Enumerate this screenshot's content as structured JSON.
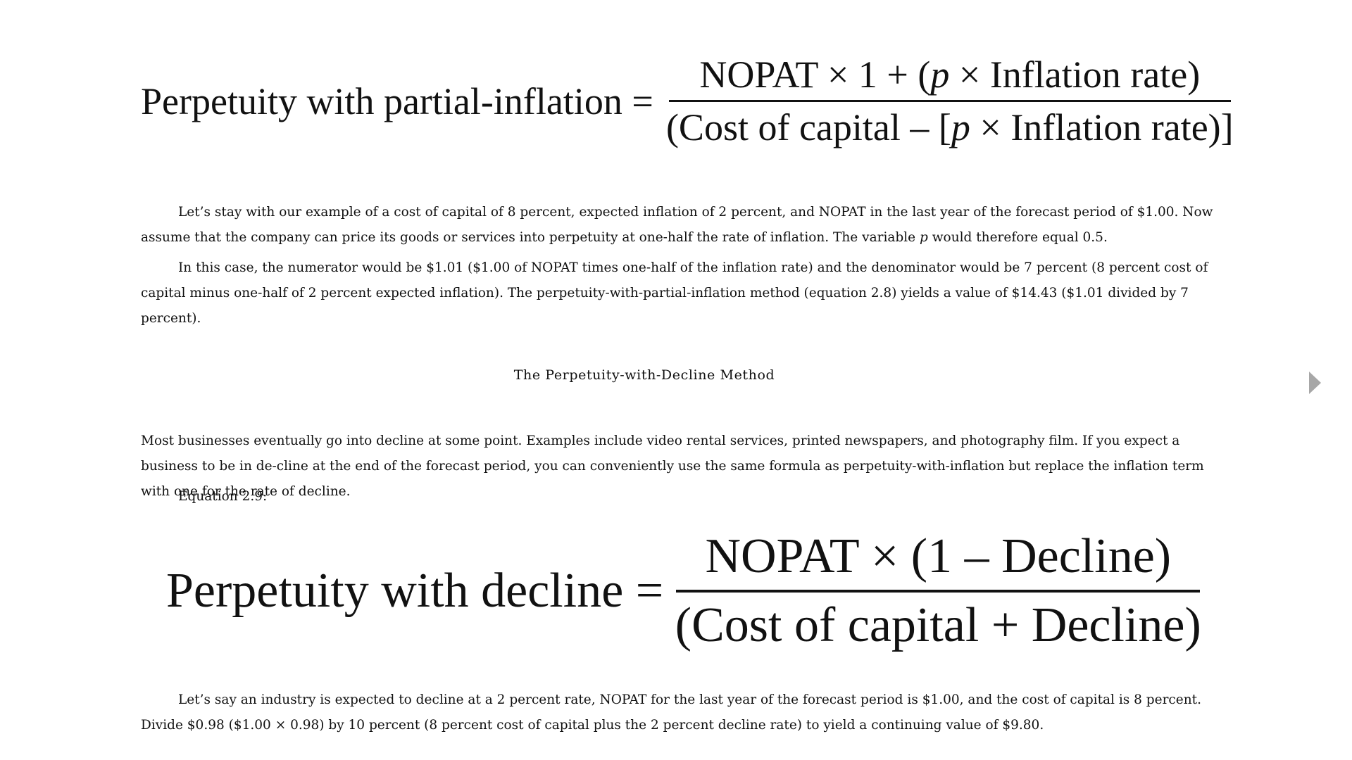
{
  "equation_partial_inflation": {
    "lhs": "Perpetuity with partial-inflation =",
    "numerator_a": "NOPAT ×  1 + (",
    "numerator_p": "p",
    "numerator_b": " × Inflation rate)",
    "denominator_a": "(Cost of capital – [",
    "denominator_p": "p",
    "denominator_b": " × Inflation rate)]"
  },
  "paragraph_1": {
    "text_a": "Let’s stay with our example of a cost of capital of 8 percent, expected inflation of 2 percent, and NOPAT in the last year of the forecast period of $1.00. Now assume that the company can price its goods or services into perpetuity at one-half the rate of inflation. The variable ",
    "variable": "p",
    "text_b": " would therefore equal 0.5."
  },
  "paragraph_2": "In this case, the numerator would be $1.01 ($1.00 of NOPAT times one-half of the inflation rate) and the denominator would be 7 percent (8 percent cost of capital minus one-half of 2 percent expected inflation). The perpetuity-with-partial-inflation method (equation 2.8) yields a value of $14.43 ($1.01 divided by 7 percent).",
  "section_heading": "The Perpetuity-with-Decline Method",
  "paragraph_3": "Most businesses eventually go into decline at some point. Examples include video rental services, printed newspapers, and photography film. If you expect a business to be in de-cline at the end of the forecast period, you can conveniently use the same formula as perpetuity-with-inflation but replace the inflation term with one for the rate of decline.",
  "paragraph_4": "Equation 2.9:",
  "equation_decline": {
    "lhs": "Perpetuity with decline =",
    "numerator": "NOPAT × (1 – Decline)",
    "denominator": "(Cost of capital + Decline)"
  },
  "paragraph_5": "Let’s say an industry is expected to decline at a 2 percent rate, NOPAT for the last year of the forecast period is $1.00, and the cost of capital is 8 percent. Divide $0.98 ($1.00 × 0.98) by 10 percent (8 percent cost of capital plus the 2 percent decline rate) to yield a continuing value of $9.80.",
  "navigation": {
    "next_icon": "triangle-right",
    "next_color": "#a7a7a7"
  }
}
